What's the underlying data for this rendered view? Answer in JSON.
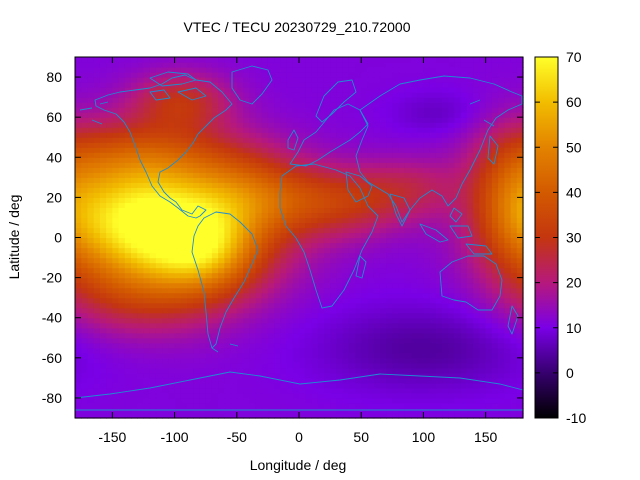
{
  "chart_data": {
    "type": "heatmap",
    "title": "VTEC / TECU 20230729_210.72000",
    "xlabel": "Longitude / deg",
    "ylabel": "Latitude / deg",
    "xlim": [
      -180,
      180
    ],
    "ylim": [
      -90,
      90
    ],
    "x_ticks": [
      -150,
      -100,
      -50,
      0,
      50,
      100,
      150
    ],
    "y_ticks": [
      -80,
      -60,
      -40,
      -20,
      0,
      20,
      40,
      60,
      80
    ],
    "colorbar": {
      "range": [
        -10,
        70
      ],
      "ticks": [
        -10,
        0,
        10,
        20,
        30,
        40,
        50,
        60,
        70
      ],
      "palette_stops": [
        {
          "value": -10,
          "color": "#000000"
        },
        {
          "value": 0,
          "color": "#36006e"
        },
        {
          "value": 10,
          "color": "#7a00e6"
        },
        {
          "value": 20,
          "color": "#b6197c"
        },
        {
          "value": 30,
          "color": "#c4360f"
        },
        {
          "value": 40,
          "color": "#d35a00"
        },
        {
          "value": 50,
          "color": "#e38300"
        },
        {
          "value": 60,
          "color": "#f2bd00"
        },
        {
          "value": 70,
          "color": "#ffff2a"
        }
      ]
    },
    "field": {
      "background_tec": 11,
      "enhancements": [
        {
          "lon": -105,
          "lat": 5,
          "peak_tec": 52,
          "sigma_lon": 55,
          "sigma_lat": 22
        },
        {
          "lon": -75,
          "lat": -8,
          "peak_tec": 18,
          "sigma_lon": 28,
          "sigma_lat": 14
        },
        {
          "lon": -145,
          "lat": 15,
          "peak_tec": 18,
          "sigma_lon": 38,
          "sigma_lat": 22
        },
        {
          "lon": -40,
          "lat": 22,
          "peak_tec": 16,
          "sigma_lon": 35,
          "sigma_lat": 14
        },
        {
          "lon": 30,
          "lat": 18,
          "peak_tec": 18,
          "sigma_lon": 40,
          "sigma_lat": 12
        },
        {
          "lon": 90,
          "lat": 25,
          "peak_tec": 9,
          "sigma_lon": 30,
          "sigma_lat": 10
        },
        {
          "lon": 170,
          "lat": 20,
          "peak_tec": 17,
          "sigma_lon": 22,
          "sigma_lat": 22
        },
        {
          "lon": -120,
          "lat": 42,
          "peak_tec": 14,
          "sigma_lon": 55,
          "sigma_lat": 12
        },
        {
          "lon": -95,
          "lat": 68,
          "peak_tec": 17,
          "sigma_lon": 28,
          "sigma_lat": 10
        },
        {
          "lon": -130,
          "lat": -30,
          "peak_tec": 10,
          "sigma_lon": 45,
          "sigma_lat": 14
        }
      ],
      "depletions": [
        {
          "lon": 100,
          "lat": -55,
          "drop_tec": 7,
          "sigma_lon": 60,
          "sigma_lat": 15
        },
        {
          "lon": 110,
          "lat": 62,
          "drop_tec": 4,
          "sigma_lon": 25,
          "sigma_lat": 8
        }
      ]
    }
  }
}
